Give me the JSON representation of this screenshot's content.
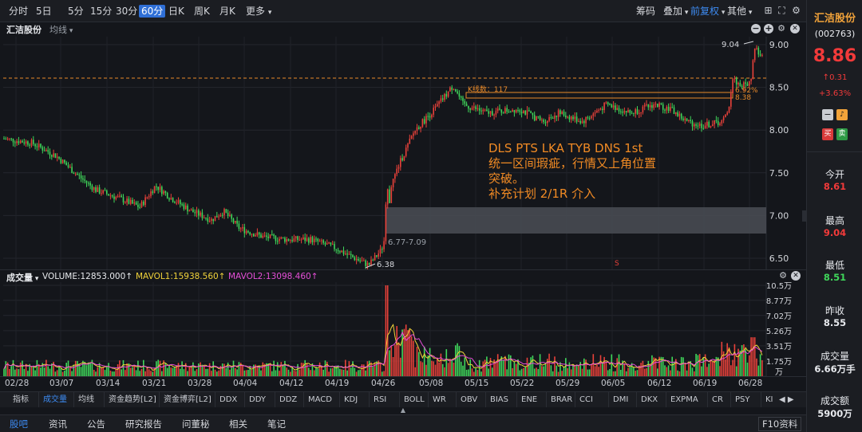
{
  "periods": [
    "分时",
    "5日",
    "5分",
    "15分",
    "30分",
    "60分",
    "日K",
    "周K",
    "月K",
    "更多"
  ],
  "active_period": "60分",
  "toolbar": {
    "chips": "筹码",
    "overlay": "叠加",
    "adjust": "前复权",
    "other": "其他"
  },
  "chart": {
    "stock_name": "汇洁股份",
    "ma_label": "均线",
    "price_axis": [
      "9.00",
      "8.50",
      "8.00",
      "7.50",
      "7.00",
      "6.50"
    ],
    "high_label": "9.04",
    "low_label": "6.38",
    "gap_label": "6.77-7.09",
    "kline_count": "K线数：117",
    "box_pct": "6.92%",
    "box_low": "8.38",
    "s_marker": "S",
    "annotation": [
      "DLS  PTS  LKA  TYB  DNS 1st",
      "统一区间瑕疵，行情又上角位置",
      "突破。",
      "补充计划 2/1R 介入"
    ]
  },
  "volume": {
    "title": "成交量",
    "volume": "VOLUME:12853.000↑",
    "mavol1": "MAVOL1:15938.560↑",
    "mavol2": "MAVOL2:13098.460↑",
    "axis": [
      "10.5万",
      "8.77万",
      "7.02万",
      "5.26万",
      "3.51万",
      "1.75万",
      "万"
    ]
  },
  "dates": [
    "02/28",
    "03/07",
    "03/14",
    "03/21",
    "03/28",
    "04/04",
    "04/12",
    "04/19",
    "04/26",
    "05/08",
    "05/15",
    "05/22",
    "05/29",
    "06/05",
    "06/12",
    "06/19",
    "06/28"
  ],
  "indicators": [
    "指标",
    "成交量",
    "均线",
    "资金趋势[L2]",
    "资金博弈[L2]",
    "DDX",
    "DDY",
    "DDZ",
    "MACD",
    "KDJ",
    "RSI",
    "BOLL",
    "WR",
    "OBV",
    "BIAS",
    "ENE",
    "BRAR",
    "CCI",
    "DMI",
    "DKX",
    "EXPMA",
    "CR",
    "PSY",
    "KI"
  ],
  "active_indicator": "成交量",
  "bottom_tabs": [
    "股吧",
    "资讯",
    "公告",
    "研究报告",
    "问董秘",
    "相关",
    "笔记"
  ],
  "bottom_right": "F10资料",
  "quote": {
    "name": "汇洁股份",
    "code": "(002763)",
    "price": "8.86",
    "change": "0.31",
    "pct": "+3.63%",
    "buy": "买",
    "sell": "卖",
    "open_label": "今开",
    "open": "8.61",
    "high_label": "最高",
    "high": "9.04",
    "low_label": "最低",
    "low": "8.51",
    "prev_label": "昨收",
    "prev": "8.55",
    "vol_label": "成交量",
    "vol": "6.66万手",
    "amt_label": "成交额",
    "amt": "5900万"
  },
  "colors": {
    "up": "#e8413a",
    "down": "#3fd65a",
    "accent": "#2f6fd6",
    "annot": "#f08a24"
  }
}
